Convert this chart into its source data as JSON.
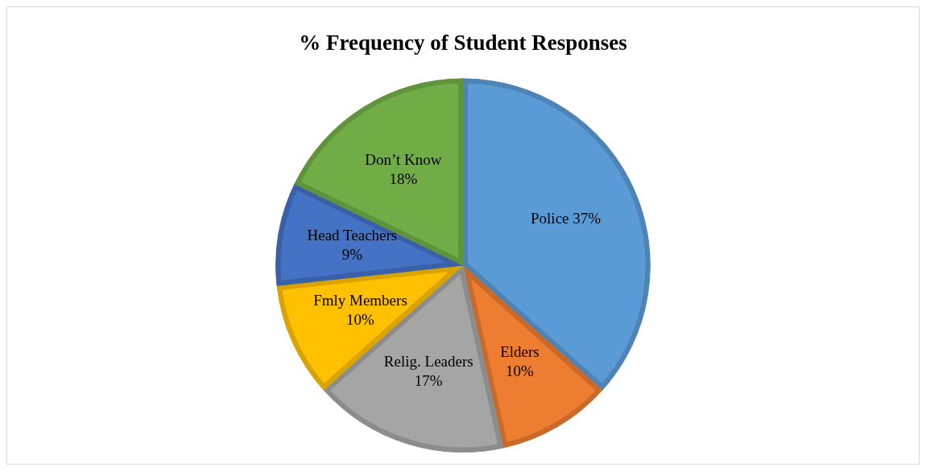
{
  "chart_data": {
    "type": "pie",
    "title": "% Frequency of Student Responses",
    "categories": [
      "Police",
      "Elders",
      "Relig. Leaders",
      "Fmly Members",
      "Head Teachers",
      "Don’t Know"
    ],
    "values": [
      37,
      10,
      17,
      10,
      9,
      18
    ],
    "value_labels": [
      "37%",
      "10%",
      "17%",
      "10%",
      "9%",
      "18%"
    ],
    "colors": [
      "#5b9bd5",
      "#ed7d31",
      "#a5a5a5",
      "#ffc000",
      "#4472c4",
      "#70ad47"
    ],
    "legend": false
  }
}
